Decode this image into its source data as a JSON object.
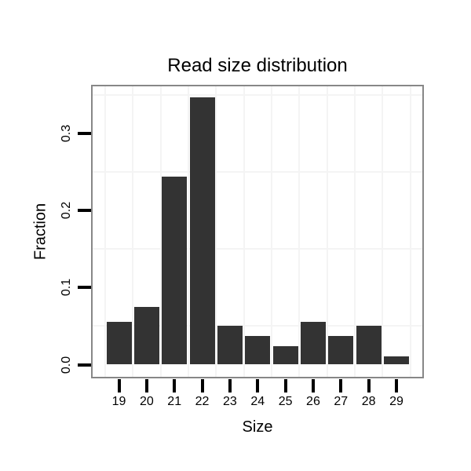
{
  "chart_data": {
    "type": "bar",
    "title": "Read size distribution",
    "xlabel": "Size",
    "ylabel": "Fraction",
    "categories": [
      "19",
      "20",
      "21",
      "22",
      "23",
      "24",
      "25",
      "26",
      "27",
      "28",
      "29"
    ],
    "values": [
      0.056,
      0.075,
      0.244,
      0.347,
      0.05,
      0.037,
      0.024,
      0.056,
      0.037,
      0.05,
      0.011
    ],
    "y_tick_labels": [
      "0.0",
      "0.1",
      "0.2",
      "0.3"
    ],
    "y_tick_values": [
      0.0,
      0.1,
      0.2,
      0.3
    ],
    "ylim": [
      0,
      0.362
    ],
    "minor_gridlines_y": [
      0.05,
      0.15,
      0.25,
      0.35
    ],
    "grid": "minor gridlines only, vertical lines between categories",
    "legend": "none",
    "colors": {
      "bar": "#333333",
      "panel_border": "#878787",
      "gridline": "#f4f4f4",
      "tick": "#000000",
      "text": "#000000",
      "background": "#ffffff"
    }
  }
}
